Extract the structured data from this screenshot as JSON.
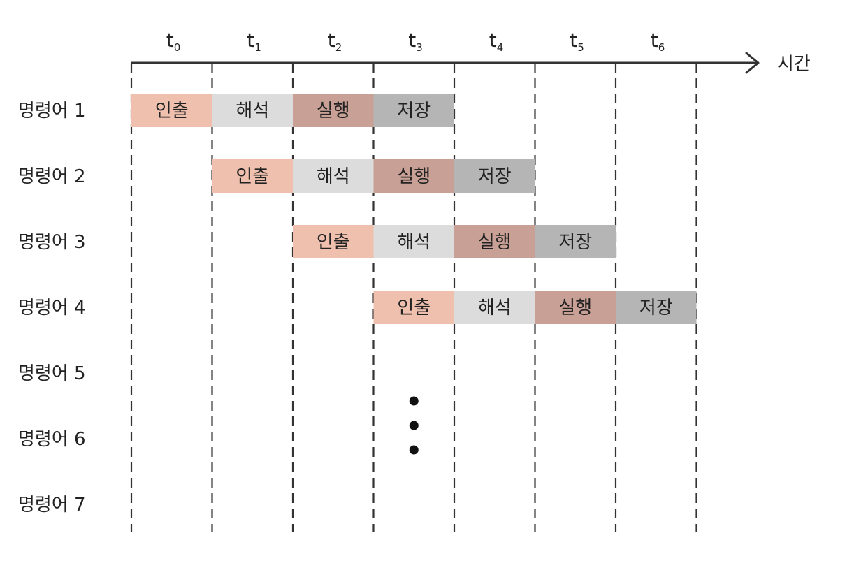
{
  "time_axis": {
    "ticks": [
      {
        "base": "t",
        "sub": "0"
      },
      {
        "base": "t",
        "sub": "1"
      },
      {
        "base": "t",
        "sub": "2"
      },
      {
        "base": "t",
        "sub": "3"
      },
      {
        "base": "t",
        "sub": "4"
      },
      {
        "base": "t",
        "sub": "5"
      },
      {
        "base": "t",
        "sub": "6"
      }
    ],
    "label": "시간"
  },
  "stages": [
    {
      "name": "인출",
      "color": "#efc0ad"
    },
    {
      "name": "해석",
      "color": "#dcdcdc"
    },
    {
      "name": "실행",
      "color": "#c9a095"
    },
    {
      "name": "저장",
      "color": "#b5b5b5"
    }
  ],
  "instructions": [
    {
      "label": "명령어 1",
      "start": 0
    },
    {
      "label": "명령어 2",
      "start": 1
    },
    {
      "label": "명령어 3",
      "start": 2
    },
    {
      "label": "명령어 4",
      "start": 3
    },
    {
      "label": "명령어 5",
      "start": null
    },
    {
      "label": "명령어 6",
      "start": null
    },
    {
      "label": "명령어 7",
      "start": null
    }
  ],
  "continuation": {
    "dots": 3
  },
  "colors": {
    "line": "#333333",
    "text": "#222222",
    "background": "#ffffff"
  }
}
